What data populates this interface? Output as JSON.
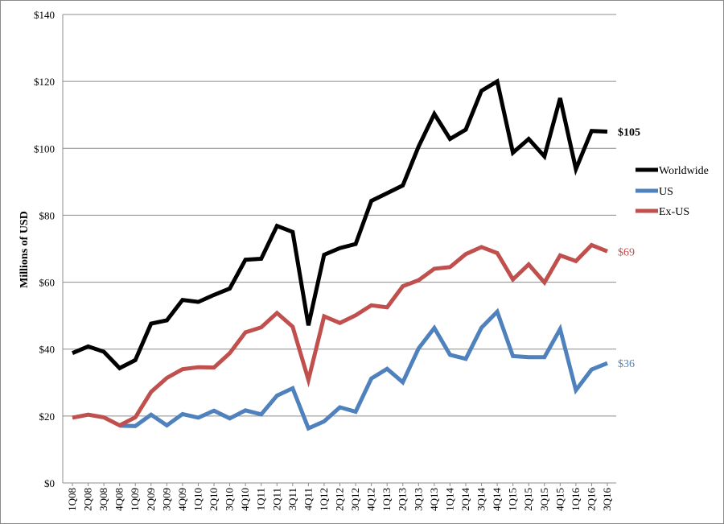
{
  "chart_data": {
    "type": "line",
    "title": "",
    "xlabel": "",
    "ylabel": "Millions of USD",
    "ylim": [
      0,
      140
    ],
    "yticks": [
      0,
      20,
      40,
      60,
      80,
      100,
      120,
      140
    ],
    "ytick_labels": [
      "$0",
      "$20",
      "$40",
      "$60",
      "$80",
      "$100",
      "$120",
      "$140"
    ],
    "grid": true,
    "legend_position": "right",
    "categories": [
      "1Q08",
      "2Q08",
      "3Q08",
      "4Q08",
      "1Q09",
      "2Q09",
      "3Q09",
      "4Q09",
      "1Q10",
      "2Q10",
      "3Q10",
      "4Q10",
      "1Q11",
      "2Q11",
      "3Q11",
      "4Q11",
      "1Q12",
      "2Q12",
      "3Q12",
      "4Q12",
      "1Q13",
      "2Q13",
      "3Q13",
      "4Q13",
      "1Q14",
      "2Q14",
      "3Q14",
      "4Q14",
      "1Q15",
      "2Q15",
      "3Q15",
      "4Q15",
      "1Q16",
      "2Q16",
      "3Q16"
    ],
    "series": [
      {
        "name": "Worldwide",
        "color": "#000000",
        "end_label": "$105",
        "values": [
          38.8,
          40.8,
          39.2,
          34.3,
          36.7,
          47.6,
          48.6,
          54.7,
          54.1,
          56.2,
          58.1,
          66.7,
          67.0,
          76.8,
          75.0,
          47.1,
          68.2,
          70.2,
          71.4,
          84.3,
          86.6,
          88.9,
          100.5,
          110.3,
          102.8,
          105.6,
          117.2,
          120.0,
          98.7,
          102.8,
          97.6,
          115.0,
          93.8,
          105.2,
          105.0
        ]
      },
      {
        "name": "US",
        "color": "#4f81bd",
        "end_label": "$36",
        "values": [
          null,
          null,
          null,
          17.1,
          17.0,
          20.4,
          17.2,
          20.6,
          19.5,
          21.6,
          19.3,
          21.7,
          20.5,
          26.1,
          28.3,
          16.3,
          18.4,
          22.6,
          21.3,
          31.2,
          34.1,
          30.1,
          40.2,
          46.3,
          38.3,
          37.1,
          46.4,
          51.2,
          37.9,
          37.6,
          37.6,
          46.0,
          27.7,
          33.9,
          35.8
        ]
      },
      {
        "name": "Ex-US",
        "color": "#c0504d",
        "end_label": "$69",
        "values": [
          19.5,
          20.4,
          19.6,
          17.2,
          19.6,
          27.2,
          31.4,
          34.0,
          34.6,
          34.5,
          38.8,
          45.0,
          46.5,
          50.8,
          46.7,
          30.8,
          49.8,
          47.8,
          50.1,
          53.1,
          52.5,
          58.8,
          60.6,
          64.0,
          64.5,
          68.4,
          70.5,
          68.7,
          60.8,
          65.3,
          59.9,
          68.0,
          66.3,
          71.1,
          69.2
        ]
      }
    ]
  }
}
